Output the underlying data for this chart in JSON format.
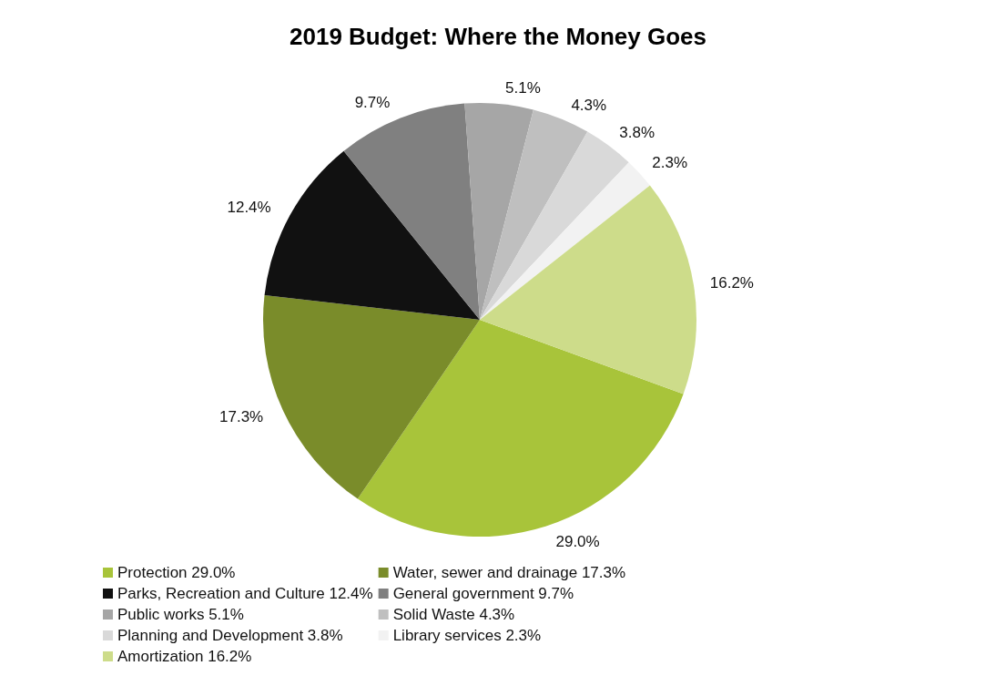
{
  "chart_data": {
    "type": "pie",
    "title": "2019 Budget: Where the Money Goes",
    "categories": [
      "Protection 29.0%",
      "Water, sewer and drainage 17.3%",
      "Parks, Recreation and Culture 12.4%",
      "General government 9.7%",
      "Public works 5.1%",
      "Solid Waste 4.3%",
      "Planning and Development 3.8%",
      "Library services 2.3%",
      "Amortization 16.2%"
    ],
    "values": [
      29.0,
      17.3,
      12.4,
      9.7,
      5.1,
      4.3,
      3.8,
      2.3,
      16.2
    ],
    "value_labels": [
      "29.0%",
      "17.3%",
      "12.4%",
      "9.7%",
      "5.1%",
      "4.3%",
      "3.8%",
      "2.3%",
      "16.2%"
    ],
    "colors": [
      "#a8c43a",
      "#7a8c2a",
      "#111111",
      "#808080",
      "#a6a6a6",
      "#bfbfbf",
      "#d9d9d9",
      "#f2f2f2",
      "#cddc8a"
    ],
    "legend": "bottom"
  }
}
